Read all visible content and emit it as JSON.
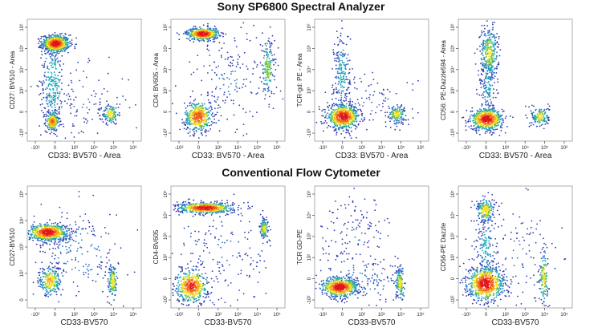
{
  "titles": {
    "spectral": "Sony SP6800 Spectral Analyzer",
    "conventional": "Conventional Flow Cytometer"
  },
  "chart_data": [
    {
      "type": "scatter",
      "row": 0,
      "xlabel": "CD33: BV570 - Area",
      "ylabel": "CD27: BV510 - Area",
      "x_ticks": [
        "-10³",
        "0",
        "10³",
        "10⁴",
        "10⁵",
        "10⁶"
      ],
      "y_ticks": [
        "-10³",
        "0",
        "10³",
        "10⁴",
        "10⁵",
        "10⁶"
      ],
      "populations": [
        {
          "x": 0.25,
          "y": 0.8,
          "sx": 0.06,
          "sy": 0.035,
          "n": 650,
          "peak": 1.0
        },
        {
          "x": 0.22,
          "y": 0.16,
          "sx": 0.03,
          "sy": 0.04,
          "n": 220,
          "peak": 0.75
        },
        {
          "x": 0.73,
          "y": 0.22,
          "sx": 0.035,
          "sy": 0.04,
          "n": 130,
          "peak": 0.55
        },
        {
          "x": 0.22,
          "y": 0.48,
          "sx": 0.05,
          "sy": 0.18,
          "n": 260,
          "peak": 0.3
        },
        {
          "x": 0.5,
          "y": 0.3,
          "sx": 0.2,
          "sy": 0.15,
          "n": 120,
          "peak": 0.1
        }
      ]
    },
    {
      "type": "scatter",
      "row": 0,
      "xlabel": "CD33: BV570 - Area",
      "ylabel": "CD4: BV605 - Area",
      "x_ticks": [
        "-10³",
        "0",
        "10³",
        "10⁴",
        "10⁵",
        "10⁶"
      ],
      "y_ticks": [
        "-10³",
        "0",
        "10³",
        "10⁴",
        "10⁵",
        "10⁶"
      ],
      "populations": [
        {
          "x": 0.28,
          "y": 0.88,
          "sx": 0.07,
          "sy": 0.025,
          "n": 500,
          "peak": 1.0
        },
        {
          "x": 0.24,
          "y": 0.2,
          "sx": 0.06,
          "sy": 0.06,
          "n": 450,
          "peak": 0.85
        },
        {
          "x": 0.85,
          "y": 0.6,
          "sx": 0.03,
          "sy": 0.12,
          "n": 170,
          "peak": 0.4
        },
        {
          "x": 0.5,
          "y": 0.5,
          "sx": 0.22,
          "sy": 0.22,
          "n": 180,
          "peak": 0.1
        }
      ]
    },
    {
      "type": "scatter",
      "row": 0,
      "xlabel": "CD33: BV570 - Area",
      "ylabel": "TCR-gd: PE - Area",
      "x_ticks": [
        "-10³",
        "0",
        "10³",
        "10⁴",
        "10⁵",
        "10⁶"
      ],
      "y_ticks": [
        "-10³",
        "0",
        "10³",
        "10⁴",
        "10⁵",
        "10⁶"
      ],
      "populations": [
        {
          "x": 0.25,
          "y": 0.2,
          "sx": 0.07,
          "sy": 0.05,
          "n": 650,
          "peak": 1.0
        },
        {
          "x": 0.72,
          "y": 0.22,
          "sx": 0.04,
          "sy": 0.04,
          "n": 150,
          "peak": 0.5
        },
        {
          "x": 0.24,
          "y": 0.55,
          "sx": 0.035,
          "sy": 0.18,
          "n": 200,
          "peak": 0.25
        },
        {
          "x": 0.5,
          "y": 0.3,
          "sx": 0.2,
          "sy": 0.12,
          "n": 100,
          "peak": 0.1
        }
      ]
    },
    {
      "type": "scatter",
      "row": 0,
      "xlabel": "CD33: BV570 - Area",
      "ylabel": "CD56: PE-Dazzle594 - Area",
      "x_ticks": [
        "-10³",
        "0",
        "10³",
        "10⁴",
        "10⁵",
        "10⁶"
      ],
      "y_ticks": [
        "-10³",
        "0",
        "10³",
        "10⁴",
        "10⁵",
        "10⁶"
      ],
      "populations": [
        {
          "x": 0.25,
          "y": 0.18,
          "sx": 0.07,
          "sy": 0.045,
          "n": 650,
          "peak": 1.0
        },
        {
          "x": 0.27,
          "y": 0.72,
          "sx": 0.04,
          "sy": 0.12,
          "n": 320,
          "peak": 0.45
        },
        {
          "x": 0.72,
          "y": 0.2,
          "sx": 0.04,
          "sy": 0.04,
          "n": 150,
          "peak": 0.5
        },
        {
          "x": 0.26,
          "y": 0.45,
          "sx": 0.035,
          "sy": 0.12,
          "n": 120,
          "peak": 0.25
        }
      ]
    },
    {
      "type": "scatter",
      "row": 1,
      "xlabel": "CD33-BV570",
      "ylabel": "CD27-BV510",
      "x_ticks": [
        "-10²",
        "0",
        "10²",
        "10³",
        "10⁴",
        "10⁵"
      ],
      "y_ticks": [
        "0",
        "10²",
        "10³",
        "10⁴",
        "10⁵"
      ],
      "populations": [
        {
          "x": 0.18,
          "y": 0.62,
          "sx": 0.09,
          "sy": 0.035,
          "n": 650,
          "peak": 1.0
        },
        {
          "x": 0.2,
          "y": 0.22,
          "sx": 0.05,
          "sy": 0.06,
          "n": 250,
          "peak": 0.6
        },
        {
          "x": 0.75,
          "y": 0.22,
          "sx": 0.02,
          "sy": 0.07,
          "n": 150,
          "peak": 0.55
        },
        {
          "x": 0.45,
          "y": 0.45,
          "sx": 0.2,
          "sy": 0.18,
          "n": 200,
          "peak": 0.15
        }
      ]
    },
    {
      "type": "scatter",
      "row": 1,
      "xlabel": "CD33-BV570",
      "ylabel": "CD4-BV605",
      "x_ticks": [
        "-10²",
        "0",
        "10²",
        "10³",
        "10⁴",
        "10⁵"
      ],
      "y_ticks": [
        "-10²",
        "0",
        "10²",
        "10³",
        "10⁴",
        "10⁵"
      ],
      "populations": [
        {
          "x": 0.3,
          "y": 0.82,
          "sx": 0.12,
          "sy": 0.022,
          "n": 600,
          "peak": 1.0
        },
        {
          "x": 0.18,
          "y": 0.18,
          "sx": 0.07,
          "sy": 0.07,
          "n": 500,
          "peak": 0.9
        },
        {
          "x": 0.82,
          "y": 0.65,
          "sx": 0.02,
          "sy": 0.04,
          "n": 130,
          "peak": 0.5
        },
        {
          "x": 0.5,
          "y": 0.45,
          "sx": 0.22,
          "sy": 0.22,
          "n": 170,
          "peak": 0.1
        }
      ]
    },
    {
      "type": "scatter",
      "row": 1,
      "xlabel": "CD33-BV570",
      "ylabel": "TCR GD-PE",
      "x_ticks": [
        "-10²",
        "0",
        "10²",
        "10³",
        "10⁴",
        "10⁵"
      ],
      "y_ticks": [
        "-10²",
        "0",
        "10²",
        "10³",
        "10⁴",
        "10⁵"
      ],
      "populations": [
        {
          "x": 0.22,
          "y": 0.17,
          "sx": 0.08,
          "sy": 0.04,
          "n": 650,
          "peak": 1.0
        },
        {
          "x": 0.75,
          "y": 0.2,
          "sx": 0.02,
          "sy": 0.07,
          "n": 140,
          "peak": 0.5
        },
        {
          "x": 0.35,
          "y": 0.6,
          "sx": 0.15,
          "sy": 0.15,
          "n": 130,
          "peak": 0.1
        },
        {
          "x": 0.45,
          "y": 0.25,
          "sx": 0.18,
          "sy": 0.1,
          "n": 120,
          "peak": 0.15
        }
      ]
    },
    {
      "type": "scatter",
      "row": 1,
      "xlabel": "CD33-BV570",
      "ylabel": "CD56-PE Dazzle",
      "x_ticks": [
        "-10²",
        "0",
        "10²",
        "10³",
        "10⁴",
        "10⁵"
      ],
      "y_ticks": [
        "-10²",
        "0",
        "10²",
        "10³",
        "10⁴",
        "10⁵"
      ],
      "populations": [
        {
          "x": 0.24,
          "y": 0.2,
          "sx": 0.08,
          "sy": 0.07,
          "n": 750,
          "peak": 1.0
        },
        {
          "x": 0.24,
          "y": 0.8,
          "sx": 0.04,
          "sy": 0.05,
          "n": 200,
          "peak": 0.55
        },
        {
          "x": 0.75,
          "y": 0.25,
          "sx": 0.02,
          "sy": 0.12,
          "n": 150,
          "peak": 0.5
        },
        {
          "x": 0.24,
          "y": 0.5,
          "sx": 0.04,
          "sy": 0.15,
          "n": 140,
          "peak": 0.25
        },
        {
          "x": 0.5,
          "y": 0.45,
          "sx": 0.2,
          "sy": 0.25,
          "n": 130,
          "peak": 0.1
        }
      ]
    }
  ]
}
